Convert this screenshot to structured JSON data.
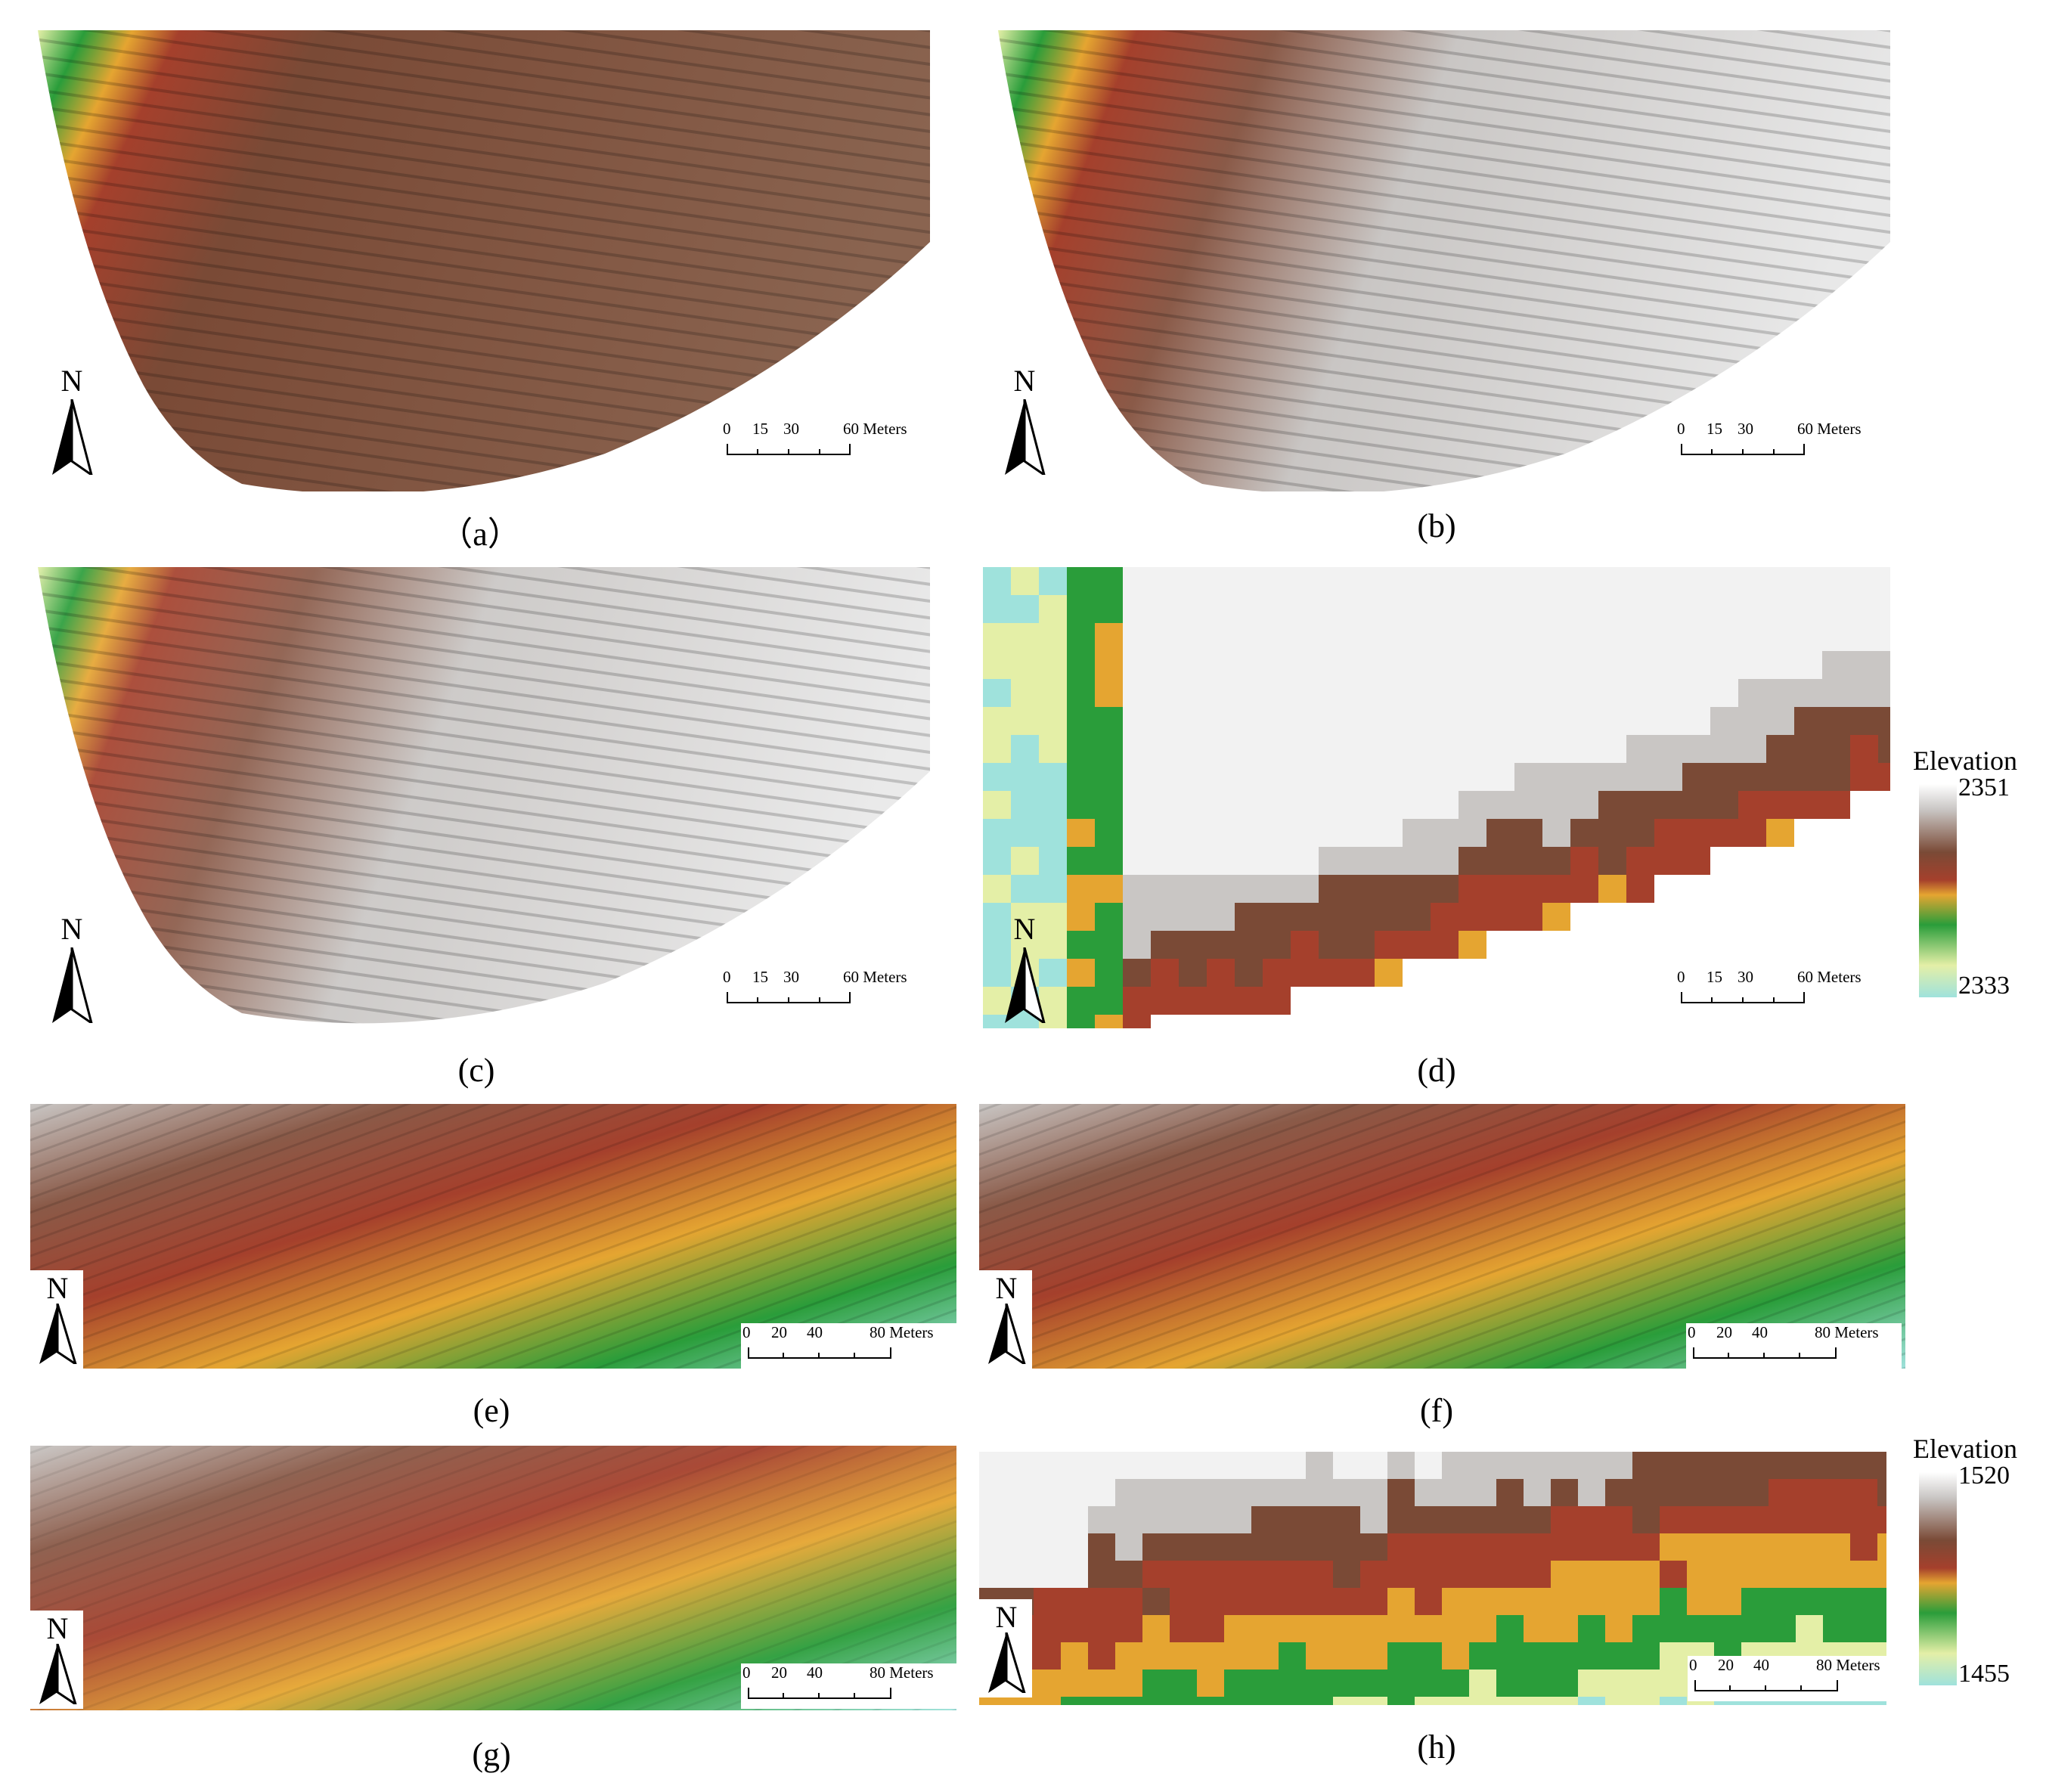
{
  "colors": {
    "terrain_ramp": [
      "#9fe2dc",
      "#e4efa7",
      "#2a9d3a",
      "#e5a531",
      "#a5402c",
      "#7a4a36",
      "#c9c6c4",
      "#f2f2f2"
    ],
    "white_background": "#ffffff"
  },
  "panels": [
    {
      "id": "a",
      "caption": "（a）",
      "north_label": "N",
      "scale": {
        "ticks": [
          "0",
          "15",
          "30",
          "60 Meters"
        ]
      }
    },
    {
      "id": "b",
      "caption": "(b)",
      "north_label": "N",
      "scale": {
        "ticks": [
          "0",
          "15",
          "30",
          "60 Meters"
        ]
      }
    },
    {
      "id": "c",
      "caption": "(c)",
      "north_label": "N",
      "scale": {
        "ticks": [
          "0",
          "15",
          "30",
          "60 Meters"
        ]
      }
    },
    {
      "id": "d",
      "caption": "(d)",
      "north_label": "N",
      "scale": {
        "ticks": [
          "0",
          "15",
          "30",
          "60 Meters"
        ]
      }
    },
    {
      "id": "e",
      "caption": "(e)",
      "north_label": "N",
      "scale": {
        "ticks": [
          "0",
          "20",
          "40",
          "80 Meters"
        ]
      }
    },
    {
      "id": "f",
      "caption": "(f)",
      "north_label": "N",
      "scale": {
        "ticks": [
          "0",
          "20",
          "40",
          "80 Meters"
        ]
      }
    },
    {
      "id": "g",
      "caption": "(g)",
      "north_label": "N",
      "scale": {
        "ticks": [
          "0",
          "20",
          "40",
          "80 Meters"
        ]
      }
    },
    {
      "id": "h",
      "caption": "(h)",
      "north_label": "N",
      "scale": {
        "ticks": [
          "0",
          "20",
          "40",
          "80 Meters"
        ]
      }
    }
  ],
  "legends": [
    {
      "title": "Elevation",
      "max": "2351",
      "min": "2333"
    },
    {
      "title": "Elevation",
      "max": "1520",
      "min": "1455"
    }
  ]
}
